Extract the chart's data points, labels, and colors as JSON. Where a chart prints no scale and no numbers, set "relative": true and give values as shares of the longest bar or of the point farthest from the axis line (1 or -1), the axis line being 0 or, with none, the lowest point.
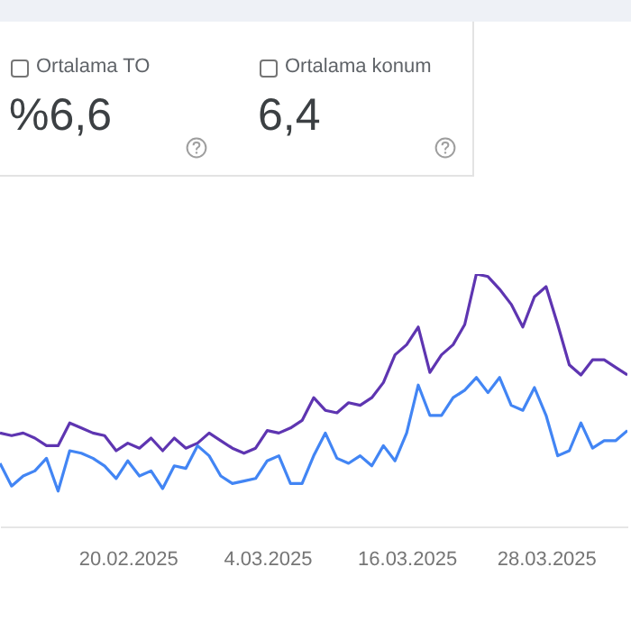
{
  "chart_data": {
    "type": "line",
    "relative": true,
    "annotations": [
      "Ortalama TO",
      "%6,6",
      "Ortalama konum",
      "6,4"
    ],
    "x": [
      "2025-02-09",
      "2025-02-10",
      "2025-02-11",
      "2025-02-12",
      "2025-02-13",
      "2025-02-14",
      "2025-02-15",
      "2025-02-16",
      "2025-02-17",
      "2025-02-18",
      "2025-02-19",
      "2025-02-20",
      "2025-02-21",
      "2025-02-22",
      "2025-02-23",
      "2025-02-24",
      "2025-02-25",
      "2025-02-26",
      "2025-02-27",
      "2025-02-28",
      "2025-03-01",
      "2025-03-02",
      "2025-03-03",
      "2025-03-04",
      "2025-03-05",
      "2025-03-06",
      "2025-03-07",
      "2025-03-08",
      "2025-03-09",
      "2025-03-10",
      "2025-03-11",
      "2025-03-12",
      "2025-03-13",
      "2025-03-14",
      "2025-03-15",
      "2025-03-16",
      "2025-03-17",
      "2025-03-18",
      "2025-03-19",
      "2025-03-20",
      "2025-03-21",
      "2025-03-22",
      "2025-03-23",
      "2025-03-24",
      "2025-03-25",
      "2025-03-26",
      "2025-03-27",
      "2025-03-28",
      "2025-03-29",
      "2025-03-30",
      "2025-03-31",
      "2025-04-01",
      "2025-04-02",
      "2025-04-03",
      "2025-04-04"
    ],
    "xlim": [
      "2025-02-09",
      "2025-04-04"
    ],
    "xticks": [
      {
        "value": "2025-02-20",
        "label": "20.02.2025"
      },
      {
        "value": "2025-03-04",
        "label": "4.03.2025"
      },
      {
        "value": "2025-03-16",
        "label": "16.03.2025"
      },
      {
        "value": "2025-03-28",
        "label": "28.03.2025"
      }
    ],
    "series": [
      {
        "color": "#5e35b1",
        "values": [
          0.37,
          0.36,
          0.37,
          0.35,
          0.32,
          0.32,
          0.41,
          0.39,
          0.37,
          0.36,
          0.3,
          0.33,
          0.31,
          0.35,
          0.3,
          0.35,
          0.31,
          0.33,
          0.37,
          0.34,
          0.31,
          0.29,
          0.31,
          0.38,
          0.37,
          0.39,
          0.42,
          0.51,
          0.46,
          0.45,
          0.49,
          0.48,
          0.51,
          0.57,
          0.68,
          0.72,
          0.79,
          0.61,
          0.68,
          0.72,
          0.8,
          1.0,
          0.99,
          0.94,
          0.88,
          0.79,
          0.91,
          0.95,
          0.8,
          0.64,
          0.6,
          0.66,
          0.66,
          0.63,
          0.6
        ]
      },
      {
        "color": "#4285f4",
        "values": [
          0.25,
          0.16,
          0.2,
          0.22,
          0.27,
          0.14,
          0.3,
          0.29,
          0.27,
          0.24,
          0.19,
          0.26,
          0.2,
          0.22,
          0.15,
          0.24,
          0.23,
          0.32,
          0.28,
          0.2,
          0.17,
          0.18,
          0.19,
          0.26,
          0.28,
          0.17,
          0.17,
          0.28,
          0.37,
          0.27,
          0.25,
          0.28,
          0.24,
          0.32,
          0.26,
          0.37,
          0.56,
          0.44,
          0.44,
          0.51,
          0.54,
          0.59,
          0.53,
          0.59,
          0.48,
          0.46,
          0.55,
          0.44,
          0.28,
          0.3,
          0.41,
          0.31,
          0.34,
          0.34,
          0.38
        ]
      }
    ]
  }
}
